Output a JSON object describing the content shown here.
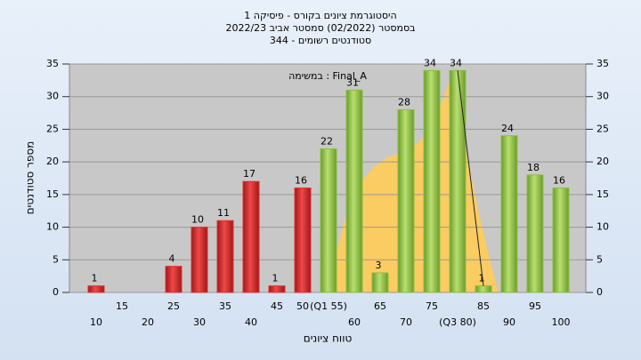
{
  "chart_data": {
    "type": "bar",
    "title": [
      "היסטוגרמת ציונים בקורס - פיסיקה 1",
      "בסמסטר  (02/2022)  סמסטר אביב 2022/23",
      "סטודנטים רשומים - 344"
    ],
    "annotation": "במשימה : Final_A",
    "x_label": "טווח ציונים",
    "y_label": "מספר סטודנטים",
    "categories": [
      "10",
      "15",
      "20",
      "25",
      "30",
      "35",
      "40",
      "45",
      "50",
      "(Q1 55)",
      "60",
      "65",
      "70",
      "75",
      "(Q3 80)",
      "85",
      "90",
      "95",
      "100"
    ],
    "values": [
      1,
      0,
      0,
      4,
      10,
      11,
      17,
      1,
      16,
      22,
      31,
      3,
      28,
      34,
      34,
      1,
      24,
      18,
      16
    ],
    "colors": [
      "#e03030",
      "#e03030",
      "#e03030",
      "#e03030",
      "#e03030",
      "#e03030",
      "#e03030",
      "#e03030",
      "#e03030",
      "#8cbf40",
      "#8cbf40",
      "#8cbf40",
      "#8cbf40",
      "#8cbf40",
      "#8cbf40",
      "#8cbf40",
      "#8cbf40",
      "#8cbf40",
      "#8cbf40"
    ],
    "ylim": [
      0,
      35
    ],
    "yticks": [
      0,
      5,
      10,
      15,
      20,
      25,
      30,
      35
    ],
    "y2lim": [
      0,
      35
    ],
    "y2ticks": [
      0,
      5,
      10,
      15,
      20,
      25,
      30,
      35
    ],
    "grid": true
  }
}
